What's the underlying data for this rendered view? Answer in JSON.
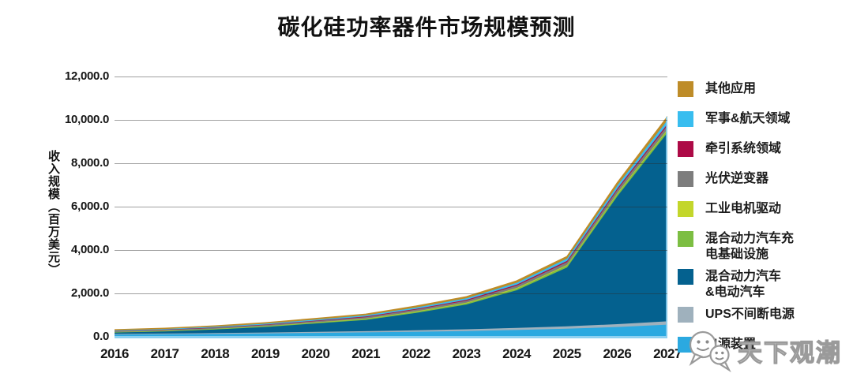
{
  "title": "碳化硅功率器件市场规模预测",
  "y_axis": {
    "title": "收入规模（百万美元）",
    "tick_labels": [
      "12,000.0",
      "10,000.0",
      "8,000.0",
      "6,000.0",
      "4,000.0",
      "2,000.0",
      "0.0"
    ],
    "min": 0,
    "max": 12000,
    "step": 2000
  },
  "x_axis": {
    "labels": [
      "2016",
      "2017",
      "2018",
      "2019",
      "2020",
      "2021",
      "2022",
      "2023",
      "2024",
      "2025",
      "2026",
      "2027"
    ]
  },
  "legend": {
    "position": "right",
    "items": [
      {
        "label": "其他应用",
        "color": "#BE8C28"
      },
      {
        "label": "军事&航天领域",
        "color": "#38BDEF"
      },
      {
        "label": "牵引系统领域",
        "color": "#AD0A46"
      },
      {
        "label": "光伏逆变器",
        "color": "#7D7D7D"
      },
      {
        "label": "工业电机驱动",
        "color": "#C3D62B"
      },
      {
        "label": "混合动力汽车充\n电基础设施",
        "color": "#7CBE42"
      },
      {
        "label": "混合动力汽车\n&电动汽车",
        "color": "#04618F"
      },
      {
        "label": "UPS不间断电源",
        "color": "#9FB1BD"
      },
      {
        "label": "电源装置",
        "color": "#2BA9E0"
      }
    ]
  },
  "chart_data": {
    "type": "area",
    "stacked": true,
    "title": "碳化硅功率器件市场规模预测",
    "xlabel": "",
    "ylabel": "收入规模（百万美元）",
    "ylim": [
      0,
      12000
    ],
    "ytick_step": 2000,
    "grid": "horizontal",
    "legend_position": "right",
    "x": [
      2016,
      2017,
      2018,
      2019,
      2020,
      2021,
      2022,
      2023,
      2024,
      2025,
      2026,
      2027
    ],
    "series_bottom_to_top": [
      {
        "id": "power-supply",
        "name": "电源装置",
        "color": "#2BA9E0",
        "values": [
          120,
          135,
          150,
          170,
          195,
          220,
          250,
          285,
          330,
          390,
          470,
          580
        ]
      },
      {
        "id": "ups",
        "name": "UPS不间断电源",
        "color": "#9FB1BD",
        "values": [
          30,
          34,
          38,
          44,
          50,
          58,
          68,
          80,
          95,
          110,
          130,
          150
        ]
      },
      {
        "id": "ev-hev",
        "name": "混合动力汽车&电动汽车",
        "color": "#04618F",
        "values": [
          65,
          98,
          165,
          256,
          387,
          517,
          803,
          1140,
          1740,
          2710,
          5900,
          8700
        ]
      },
      {
        "id": "charging-infra",
        "name": "混合动力汽车充电基础设施",
        "color": "#7CBE42",
        "values": [
          15,
          18,
          22,
          27,
          33,
          40,
          48,
          58,
          70,
          85,
          100,
          115
        ]
      },
      {
        "id": "industrial-motor",
        "name": "工业电机驱动",
        "color": "#C3D62B",
        "values": [
          8,
          9,
          11,
          13,
          15,
          18,
          21,
          25,
          29,
          33,
          38,
          43
        ]
      },
      {
        "id": "pv-inverter",
        "name": "光伏逆变器",
        "color": "#7D7D7D",
        "values": [
          35,
          40,
          46,
          53,
          61,
          70,
          81,
          93,
          110,
          130,
          155,
          180
        ]
      },
      {
        "id": "traction",
        "name": "牵引系统领域",
        "color": "#AD0A46",
        "values": [
          12,
          14,
          17,
          20,
          24,
          28,
          33,
          39,
          46,
          54,
          63,
          73
        ]
      },
      {
        "id": "military-aerospace",
        "name": "军事&航天领域",
        "color": "#38BDEF",
        "values": [
          25,
          29,
          34,
          40,
          47,
          55,
          64,
          75,
          90,
          110,
          140,
          175
        ]
      },
      {
        "id": "other",
        "name": "其他应用",
        "color": "#BE8C28",
        "values": [
          20,
          23,
          27,
          32,
          38,
          44,
          52,
          61,
          72,
          85,
          110,
          140
        ]
      }
    ],
    "totals_estimated": [
      330,
      400,
      510,
      655,
      850,
      1050,
      1420,
      1855,
      2582,
      3707,
      7106,
      10156
    ]
  },
  "watermark": {
    "text": "天下观潮"
  },
  "colors": {
    "gridline": "#9B9B9B",
    "axis_edge_light_blue": "#8ED1F1",
    "text": "#1A1A1A",
    "background": "#FFFFFF"
  }
}
